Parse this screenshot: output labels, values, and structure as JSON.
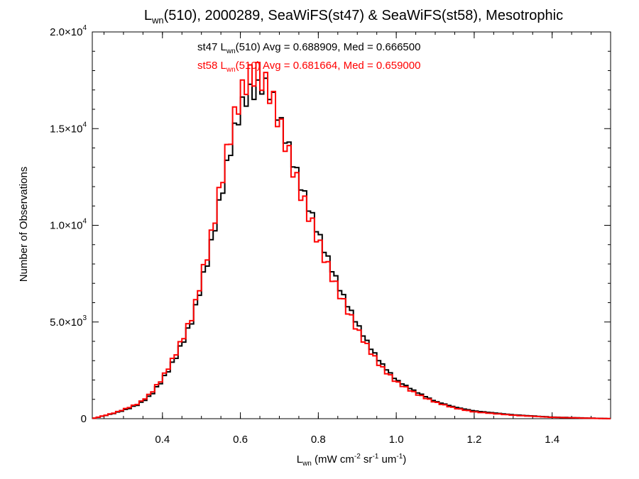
{
  "chart_data": {
    "type": "step_histogram",
    "title": {
      "prefix": "L",
      "sub": "wn",
      "rest": "(510), 2000289, SeaWiFS(st47) & SeaWiFS(st58), Mesotrophic"
    },
    "xlabel": {
      "prefix": "L",
      "sub": "wn",
      "rest": " (mW cm",
      "sup1": "-2",
      "mid1": " sr",
      "sup2": "-1",
      "mid2": " um",
      "sup3": "-1",
      "end": ")"
    },
    "ylabel": "Number of Observations",
    "xlim": [
      0.22,
      1.55
    ],
    "ylim": [
      0,
      20000
    ],
    "xticks": [
      {
        "value": 0.4,
        "label": "0.4"
      },
      {
        "value": 0.6,
        "label": "0.6"
      },
      {
        "value": 0.8,
        "label": "0.8"
      },
      {
        "value": 1.0,
        "label": "1.0"
      },
      {
        "value": 1.2,
        "label": "1.2"
      },
      {
        "value": 1.4,
        "label": "1.4"
      }
    ],
    "yticks": [
      {
        "value": 0,
        "mant": "0",
        "exp": ""
      },
      {
        "value": 5000,
        "mant": "5.0×10",
        "exp": "3"
      },
      {
        "value": 10000,
        "mant": "1.0×10",
        "exp": "4"
      },
      {
        "value": 15000,
        "mant": "1.5×10",
        "exp": "4"
      },
      {
        "value": 20000,
        "mant": "2.0×10",
        "exp": "4"
      }
    ],
    "series": [
      {
        "name": "st47",
        "color": "#000000",
        "legend": {
          "prefix": "st47 L",
          "sub": "wn",
          "rest": "(510) Avg = 0.688909, Med = 0.666500"
        },
        "x": [
          0.22,
          0.25,
          0.28,
          0.31,
          0.34,
          0.37,
          0.4,
          0.43,
          0.46,
          0.48,
          0.5,
          0.52,
          0.54,
          0.56,
          0.58,
          0.6,
          0.62,
          0.64,
          0.66,
          0.68,
          0.7,
          0.72,
          0.74,
          0.76,
          0.78,
          0.8,
          0.82,
          0.84,
          0.86,
          0.88,
          0.9,
          0.93,
          0.96,
          1.0,
          1.05,
          1.1,
          1.15,
          1.2,
          1.3,
          1.4,
          1.55
        ],
        "y": [
          0,
          150,
          300,
          500,
          750,
          1200,
          2000,
          3000,
          4300,
          5300,
          7000,
          8500,
          10500,
          12500,
          14500,
          16000,
          16800,
          17000,
          17300,
          16800,
          15500,
          14300,
          13000,
          11800,
          10700,
          9600,
          8500,
          7500,
          6500,
          5700,
          4900,
          3800,
          2900,
          2000,
          1400,
          900,
          600,
          400,
          200,
          80,
          0
        ]
      },
      {
        "name": "st58",
        "color": "#ff0000",
        "legend": {
          "prefix": "st58 L",
          "sub": "wn",
          "rest": "(510) Avg = 0.681664, Med = 0.659000"
        },
        "x": [
          0.22,
          0.25,
          0.28,
          0.31,
          0.34,
          0.37,
          0.4,
          0.43,
          0.46,
          0.48,
          0.5,
          0.52,
          0.54,
          0.56,
          0.58,
          0.6,
          0.62,
          0.64,
          0.66,
          0.68,
          0.7,
          0.72,
          0.74,
          0.76,
          0.78,
          0.8,
          0.82,
          0.84,
          0.86,
          0.88,
          0.9,
          0.93,
          0.96,
          1.0,
          1.05,
          1.1,
          1.15,
          1.2,
          1.3,
          1.4,
          1.55
        ],
        "y": [
          0,
          160,
          320,
          550,
          800,
          1300,
          2100,
          3200,
          4500,
          5500,
          7300,
          8900,
          11000,
          13200,
          15200,
          16700,
          17600,
          17900,
          17500,
          16700,
          15300,
          14000,
          12600,
          11400,
          10300,
          9200,
          8100,
          7100,
          6200,
          5400,
          4600,
          3600,
          2700,
          1900,
          1300,
          850,
          550,
          350,
          180,
          70,
          0
        ]
      }
    ]
  }
}
